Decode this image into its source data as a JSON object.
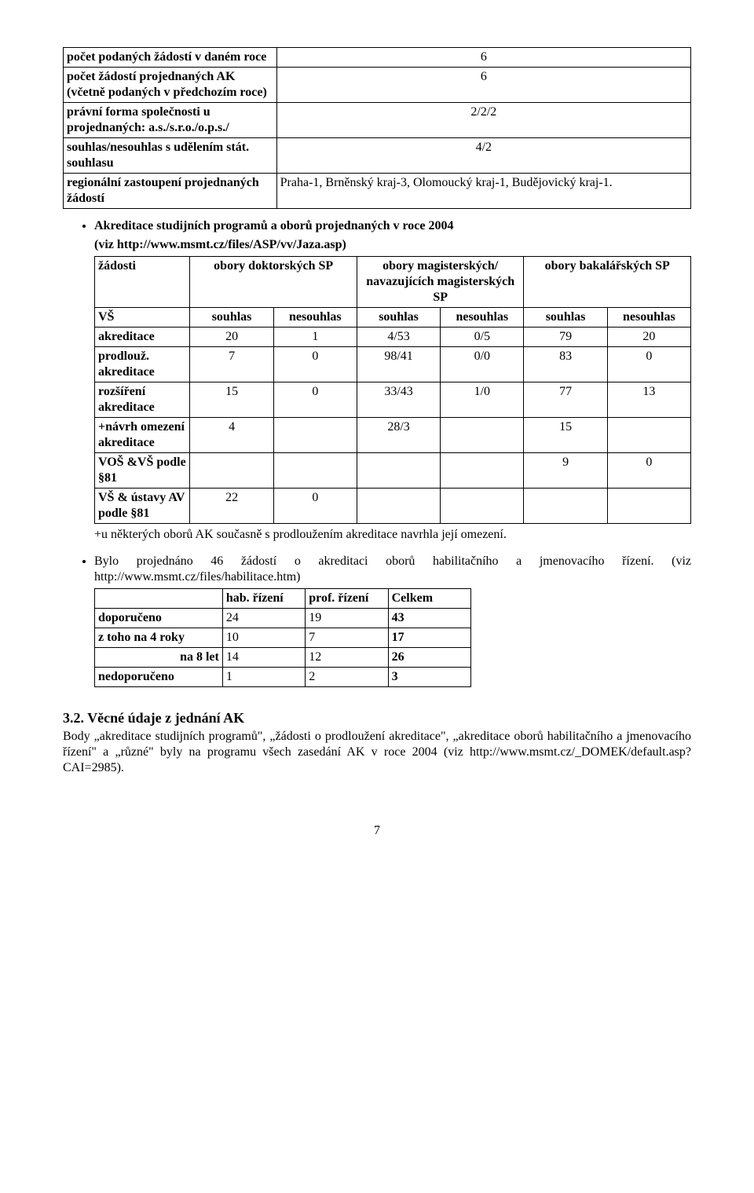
{
  "table1": {
    "rows": [
      {
        "label": "počet podaných žádostí v daném roce",
        "value": "6"
      },
      {
        "label": "počet žádostí projednaných AK (včetně podaných v předchozím roce)",
        "value": "6"
      },
      {
        "label": "právní forma společnosti u projednaných:  a.s./s.r.o./o.p.s./",
        "value": "2/2/2"
      },
      {
        "label": "souhlas/nesouhlas s udělením stát. souhlasu",
        "value": "4/2"
      },
      {
        "label": "regionální zastoupení projednaných žádostí",
        "value": "Praha-1, Brněnský kraj-3, Olomoucký kraj-1, Budějovický kraj-1."
      }
    ]
  },
  "bullet1": "Akreditace studijních programů a oborů projednaných v roce 2004",
  "ref1a": "(viz http://www.msmt.cz/files/ASP/vv/Jaza.asp)",
  "table2": {
    "head1": {
      "a": "žádosti",
      "b": "obory doktorských SP",
      "c": "obory magisterských/ navazujících magisterských SP",
      "d": "obory bakalářských SP"
    },
    "head2": {
      "a": "VŠ",
      "b": "souhlas",
      "c": "nesouhlas",
      "d": "souhlas",
      "e": "nesouhlas",
      "f": "souhlas",
      "g": "nesouhlas"
    },
    "rows": [
      {
        "label": "akreditace",
        "v": [
          "20",
          "1",
          "4/53",
          "0/5",
          "79",
          "20"
        ]
      },
      {
        "label": "prodlouž. akreditace",
        "v": [
          "7",
          "0",
          "98/41",
          "0/0",
          "83",
          "0"
        ]
      },
      {
        "label": "rozšíření akreditace",
        "v": [
          "15",
          "0",
          "33/43",
          "1/0",
          "77",
          "13"
        ]
      },
      {
        "label": "+návrh omezení akreditace",
        "v": [
          "4",
          "",
          "28/3",
          "",
          "15",
          ""
        ]
      },
      {
        "label": "VOŠ &VŠ podle §81",
        "v": [
          "",
          "",
          "",
          "",
          "9",
          "0"
        ]
      },
      {
        "label": "VŠ & ústavy AV podle §81",
        "v": [
          "22",
          "0",
          "",
          "",
          "",
          ""
        ]
      }
    ],
    "footnote": "+u některých oborů AK současně s prodloužením akreditace navrhla její omezení."
  },
  "bullet2": "Bylo projednáno 46 žádostí o akreditaci oborů habilitačního a jmenovacího řízení. (viz http://www.msmt.cz/files/habilitace.htm)",
  "table3": {
    "head": [
      "",
      "hab. řízení",
      "prof. řízení",
      "Celkem"
    ],
    "rows": [
      {
        "label": "doporučeno",
        "align": "left",
        "v": [
          "24",
          "19",
          "43"
        ]
      },
      {
        "label": "z toho na 4 roky",
        "align": "left",
        "v": [
          "10",
          "7",
          "17"
        ]
      },
      {
        "label": "na 8 let",
        "align": "right",
        "v": [
          "14",
          "12",
          "26"
        ]
      },
      {
        "label": "nedoporučeno",
        "align": "left",
        "v": [
          "1",
          "2",
          "3"
        ]
      }
    ]
  },
  "section": {
    "title": "3.2. Věcné údaje z jednání AK",
    "body": "Body „akreditace studijních programů\", „žádosti o prodloužení akreditace\", „akreditace oborů habilitačního a jmenovacího řízení\" a „různé\" byly na programu všech zasedání AK v roce 2004 (viz http://www.msmt.cz/_DOMEK/default.asp?CAI=2985)."
  },
  "pagenum": "7"
}
